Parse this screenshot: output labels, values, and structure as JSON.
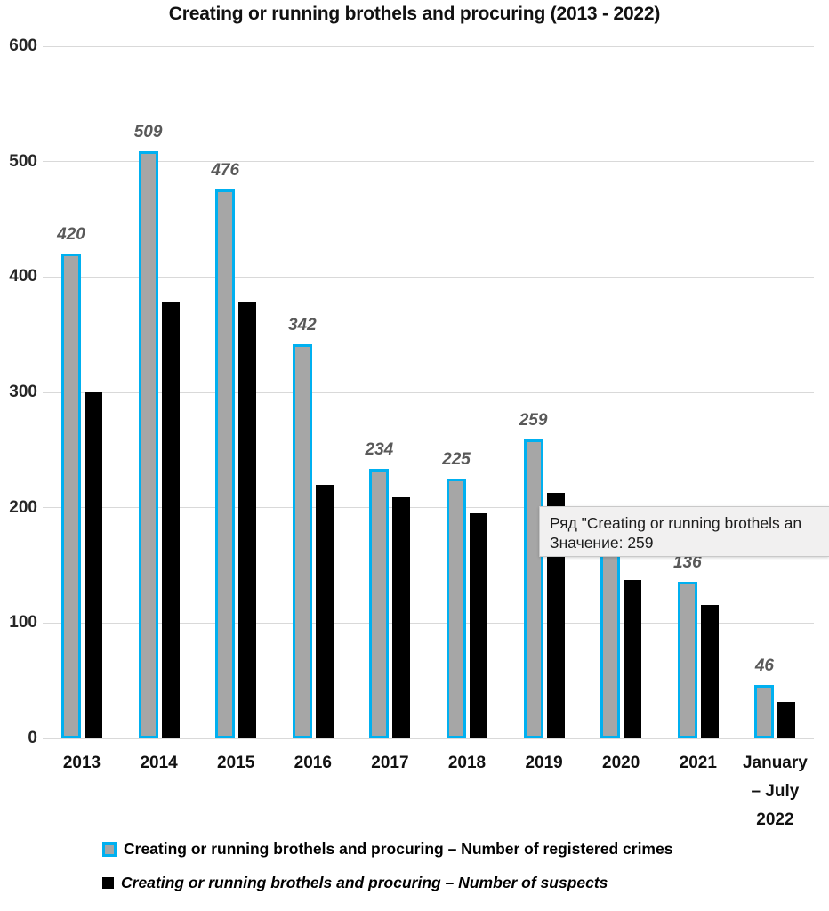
{
  "title": "Creating or running brothels and procuring (2013 - 2022)",
  "colors": {
    "registered_crimes_fill": "#A6A6A6",
    "registered_crimes_border": "#00B0F0",
    "suspects_fill": "#000000",
    "gridline": "#D9D9D9",
    "value_label": "#595959",
    "tooltip_background": "#F1F0F0",
    "tooltip_border": "#C9C9C9"
  },
  "chart_data": {
    "type": "bar",
    "title": "Creating or running brothels and procuring (2013 - 2022)",
    "categories": [
      "2013",
      "2014",
      "2015",
      "2016",
      "2017",
      "2018",
      "2019",
      "2020",
      "2021",
      "January – July 2022"
    ],
    "category_display": [
      "2013",
      "2014",
      "2015",
      "2016",
      "2017",
      "2018",
      "2019",
      "2020",
      "2021",
      "January\n– July\n2022"
    ],
    "series": [
      {
        "name": "Creating or running brothels and procuring – Number of registered crimes",
        "values": [
          420,
          509,
          476,
          342,
          234,
          225,
          259,
          161,
          136,
          46
        ],
        "value_labels": [
          "420",
          "509",
          "476",
          "342",
          "234",
          "225",
          "259",
          "",
          "136",
          "46"
        ],
        "label_visible": [
          true,
          true,
          true,
          true,
          true,
          true,
          true,
          false,
          true,
          true
        ],
        "style": "gray fill with cyan border"
      },
      {
        "name": "Creating or running brothels and procuring – Number of suspects",
        "values": [
          300,
          378,
          379,
          220,
          209,
          195,
          213,
          137,
          116,
          32
        ],
        "style": "solid black"
      }
    ],
    "xlabel": "",
    "ylabel": "",
    "ylim": [
      0,
      600
    ],
    "yticks": [
      0,
      100,
      200,
      300,
      400,
      500,
      600
    ],
    "grid": true,
    "legend_position": "bottom-left",
    "value_label_note": "italic gray numbers above registered-crimes bars; 2020 label hidden behind tooltip"
  },
  "tooltip": {
    "line1": "Ряд \"Creating or running brothels an",
    "line2": "Значение: 259"
  },
  "legend": {
    "items": [
      {
        "label": "Creating or running brothels and procuring – Number of registered crimes"
      },
      {
        "label": "Creating or running brothels and procuring – Number of suspects"
      }
    ]
  }
}
